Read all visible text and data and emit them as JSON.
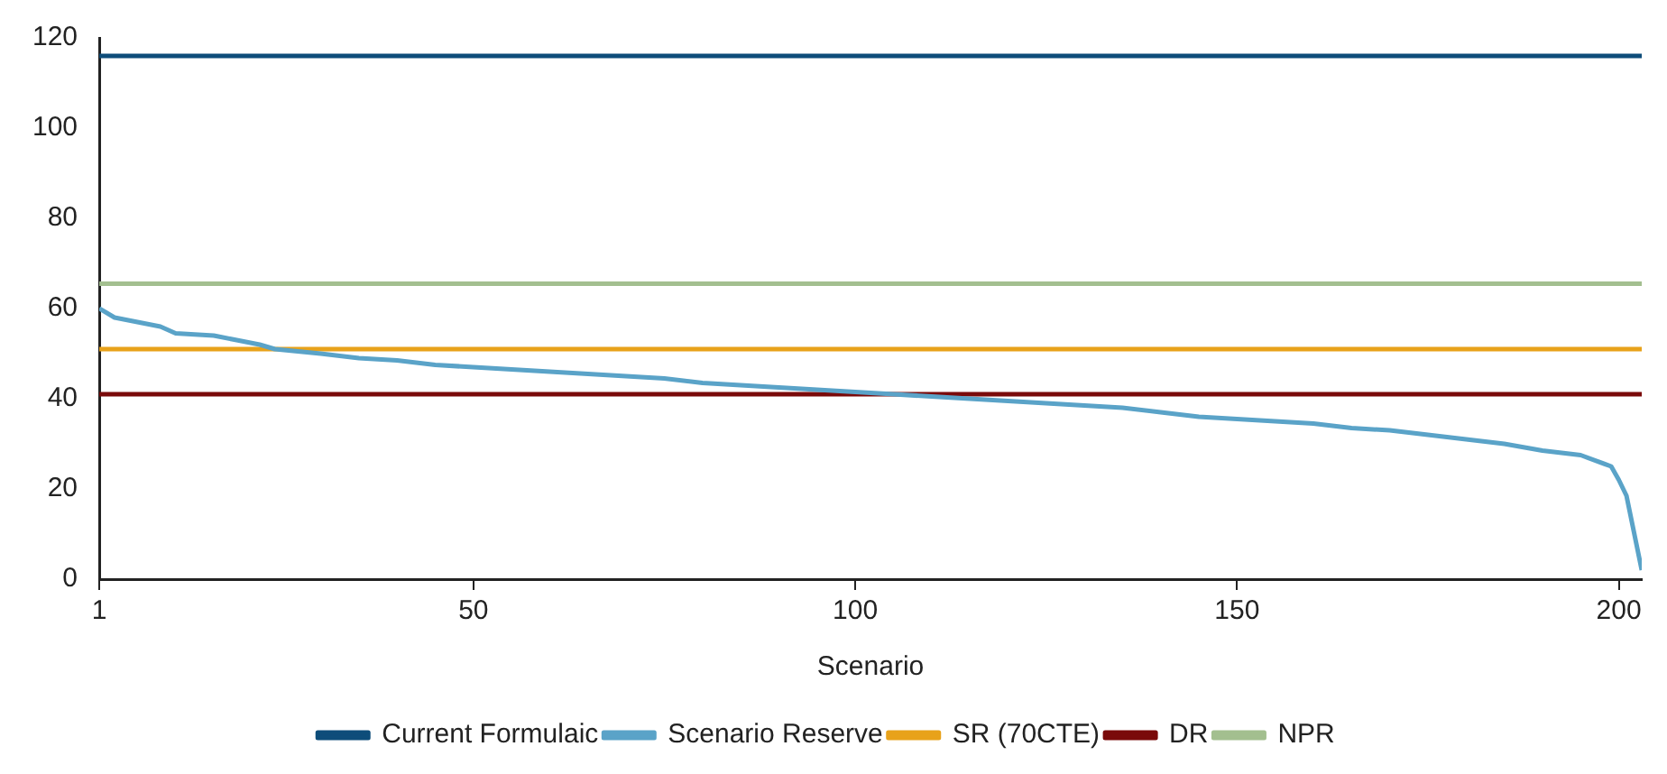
{
  "chart_data": {
    "type": "line",
    "xlabel": "Scenario",
    "xlim": [
      1,
      203
    ],
    "xticks": [
      1,
      50,
      100,
      150,
      200
    ],
    "ylim": [
      0,
      120
    ],
    "yticks": [
      0,
      20,
      40,
      60,
      80,
      100,
      120
    ],
    "grid": false,
    "legend": "bottom",
    "marker": "none",
    "series": [
      {
        "name": "Current Formulaic",
        "color": "#0e4d7a",
        "x": [
          1,
          203
        ],
        "values": [
          116,
          116
        ]
      },
      {
        "name": "Scenario Reserve",
        "color": "#5aa3c8",
        "x": [
          1,
          3,
          6,
          9,
          11,
          16,
          19,
          22,
          24,
          30,
          35,
          40,
          45,
          50,
          55,
          60,
          65,
          70,
          75,
          80,
          85,
          90,
          95,
          100,
          105,
          110,
          115,
          120,
          125,
          130,
          135,
          140,
          145,
          150,
          155,
          160,
          165,
          170,
          175,
          180,
          185,
          190,
          195,
          199,
          200,
          201,
          203
        ],
        "values": [
          60,
          58,
          57,
          56,
          54.5,
          54,
          53,
          52,
          51,
          50,
          49,
          48.5,
          47.5,
          47,
          46.5,
          46,
          45.5,
          45,
          44.5,
          43.5,
          43,
          42.5,
          42,
          41.5,
          41,
          40.5,
          40,
          39.5,
          39,
          38.5,
          38,
          37,
          36,
          35.5,
          35,
          34.5,
          33.5,
          33,
          32,
          31,
          30,
          28.5,
          27.5,
          25,
          22,
          18.5,
          2
        ]
      },
      {
        "name": "SR (70CTE)",
        "color": "#e8a21a",
        "x": [
          1,
          203
        ],
        "values": [
          51,
          51
        ]
      },
      {
        "name": "DR",
        "color": "#7a0a0a",
        "x": [
          1,
          203
        ],
        "values": [
          41,
          41
        ]
      },
      {
        "name": "NPR",
        "color": "#a3bf8f",
        "x": [
          1,
          203
        ],
        "values": [
          65.5,
          65.5
        ]
      }
    ]
  }
}
